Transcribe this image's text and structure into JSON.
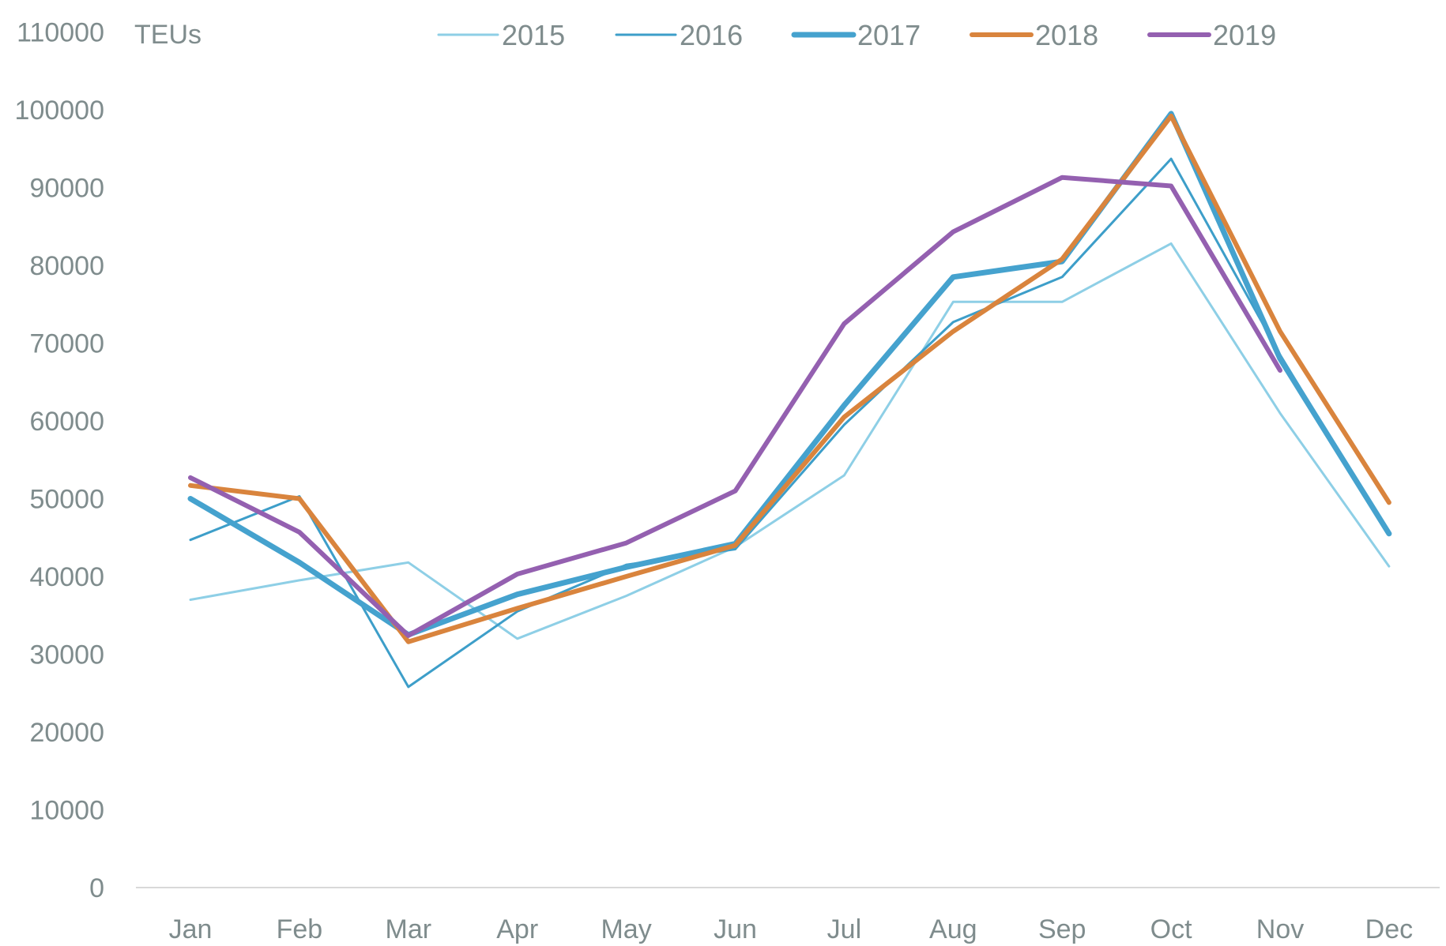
{
  "chart_data": {
    "type": "line",
    "ylabel": "TEUs",
    "ylim": [
      0,
      110000
    ],
    "yticks": [
      0,
      10000,
      20000,
      30000,
      40000,
      50000,
      60000,
      70000,
      80000,
      90000,
      100000,
      110000
    ],
    "categories": [
      "Jan",
      "Feb",
      "Mar",
      "Apr",
      "May",
      "Jun",
      "Jul",
      "Aug",
      "Sep",
      "Oct",
      "Nov",
      "Dec"
    ],
    "grid": false,
    "legend": "top",
    "series": [
      {
        "name": "2015",
        "color": "#8ecfe6",
        "values": [
          37000,
          39500,
          41800,
          32000,
          37500,
          43800,
          53000,
          75300,
          75300,
          82800,
          61000,
          41300
        ]
      },
      {
        "name": "2016",
        "color": "#3d9ec9",
        "values": [
          44700,
          50300,
          25800,
          35500,
          41500,
          43500,
          59500,
          72700,
          78500,
          93700,
          68500,
          45500
        ]
      },
      {
        "name": "2017",
        "color": "#45a2ce",
        "values": [
          50000,
          41800,
          32500,
          37700,
          41200,
          44200,
          62000,
          78500,
          80500,
          99500,
          68000,
          45500
        ]
      },
      {
        "name": "2018",
        "color": "#d9843d",
        "values": [
          51700,
          50000,
          31600,
          35900,
          40000,
          44000,
          60500,
          71500,
          80800,
          99200,
          71500,
          49500
        ]
      },
      {
        "name": "2019",
        "color": "#9460b0",
        "values": [
          52700,
          45700,
          32400,
          40300,
          44300,
          51000,
          72500,
          84300,
          91300,
          90200,
          66500,
          null
        ]
      }
    ]
  }
}
